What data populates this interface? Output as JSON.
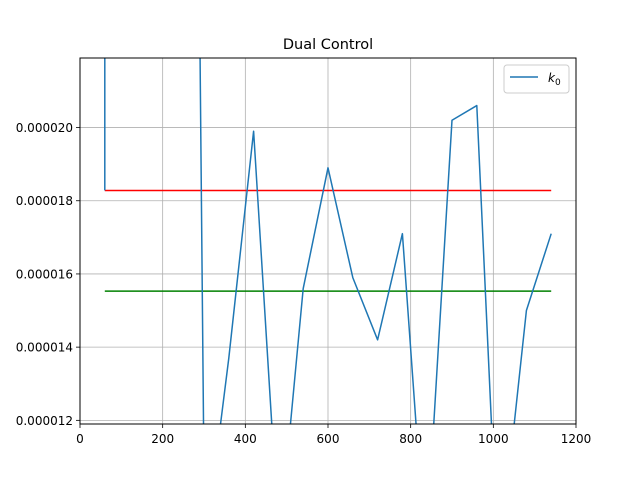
{
  "chart_data": {
    "type": "line",
    "title": "Dual Control",
    "xlabel": "",
    "ylabel": "",
    "xlim": [
      0,
      1200
    ],
    "ylim": [
      1.19e-05,
      2.19e-05
    ],
    "x_ticks": [
      0,
      200,
      400,
      600,
      800,
      1000,
      1200
    ],
    "x_tick_labels": [
      "0",
      "200",
      "400",
      "600",
      "800",
      "1000",
      "1200"
    ],
    "y_ticks": [
      1.2e-05,
      1.4e-05,
      1.6e-05,
      1.8e-05,
      2e-05
    ],
    "y_tick_labels": [
      "0.000012",
      "0.000014",
      "0.000016",
      "0.000018",
      "0.000020"
    ],
    "grid": true,
    "legend_position": "top-right",
    "series": [
      {
        "name": "k0",
        "legend_label": "k",
        "legend_sub": "0",
        "color": "#1f77b4",
        "x": [
          60,
          60,
          60,
          290,
          300,
          330,
          360,
          420,
          470,
          500,
          540,
          600,
          660,
          720,
          780,
          820,
          850,
          900,
          960,
          1000,
          1040,
          1080,
          1140
        ],
        "y": [
          2.25e-05,
          1.83e-05,
          2.25e-05,
          2.25e-05,
          1.05e-05,
          1.1e-05,
          1.37e-05,
          1.99e-05,
          1.08e-05,
          1.08e-05,
          1.56e-05,
          1.89e-05,
          1.59e-05,
          1.42e-05,
          1.71e-05,
          1.08e-05,
          1.08e-05,
          2.02e-05,
          2.06e-05,
          1.08e-05,
          1.08e-05,
          1.5e-05,
          1.71e-05
        ]
      }
    ],
    "reference_lines": [
      {
        "y": 1.828e-05,
        "x_start": 60,
        "x_end": 1140,
        "color": "#ff0000"
      },
      {
        "y": 1.553e-05,
        "x_start": 60,
        "x_end": 1140,
        "color": "#008000"
      }
    ]
  }
}
